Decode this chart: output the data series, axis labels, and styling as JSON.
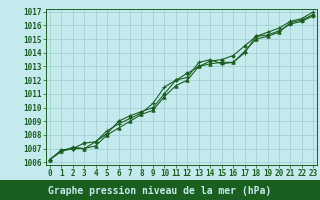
{
  "xlabel": "Graphe pression niveau de la mer (hPa)",
  "ylim": [
    1006,
    1017
  ],
  "yticks": [
    1006,
    1007,
    1008,
    1009,
    1010,
    1011,
    1012,
    1013,
    1014,
    1015,
    1016,
    1017
  ],
  "xticks": [
    0,
    1,
    2,
    3,
    4,
    5,
    6,
    7,
    8,
    9,
    10,
    11,
    12,
    13,
    14,
    15,
    16,
    17,
    18,
    19,
    20,
    21,
    22,
    23
  ],
  "bg_color": "#c5eaed",
  "grid_color": "#9dcdd1",
  "line_color": "#1a5e20",
  "label_bg_color": "#1a5e20",
  "label_text_color": "#c5eaed",
  "line1": [
    1006.2,
    1006.8,
    1007.0,
    1007.0,
    1007.5,
    1008.3,
    1008.8,
    1009.2,
    1009.6,
    1010.3,
    1011.5,
    1012.0,
    1012.2,
    1013.3,
    1013.5,
    1013.2,
    1013.3,
    1014.0,
    1015.2,
    1015.5,
    1015.8,
    1016.3,
    1016.5,
    1017.0
  ],
  "line2": [
    1006.2,
    1006.8,
    1007.1,
    1007.0,
    1007.2,
    1008.0,
    1008.5,
    1009.0,
    1009.5,
    1009.8,
    1010.8,
    1011.6,
    1012.0,
    1013.0,
    1013.2,
    1013.3,
    1013.3,
    1014.1,
    1015.0,
    1015.2,
    1015.5,
    1016.2,
    1016.4,
    1016.8
  ],
  "line3": [
    1006.2,
    1006.9,
    1007.0,
    1007.4,
    1007.5,
    1008.1,
    1009.0,
    1009.4,
    1009.7,
    1010.0,
    1011.0,
    1012.0,
    1012.5,
    1013.0,
    1013.4,
    1013.5,
    1013.8,
    1014.5,
    1015.2,
    1015.3,
    1015.6,
    1016.1,
    1016.3,
    1016.7
  ],
  "tick_fontsize": 5.5,
  "label_fontsize": 7.0
}
